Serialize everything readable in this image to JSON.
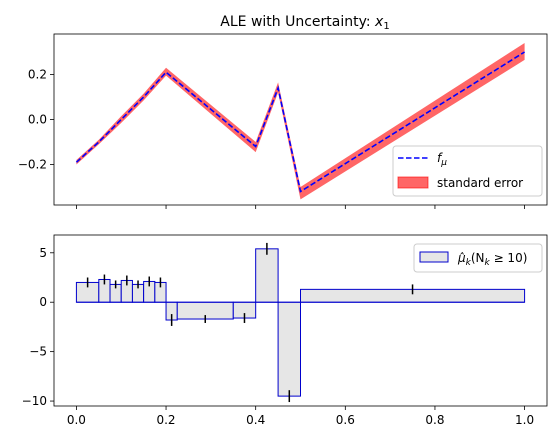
{
  "chart_data": [
    {
      "type": "line",
      "title_prefix": "ALE with Uncertainty: ",
      "title_var": "x",
      "title_sub": "1",
      "xlim": [
        -0.05,
        1.05
      ],
      "ylim": [
        -0.38,
        0.38
      ],
      "x_ticks": [
        0.0,
        0.2,
        0.4,
        0.6,
        0.8,
        1.0
      ],
      "y_ticks": [
        0.2,
        0.0,
        -0.2
      ],
      "y_tick_labels": [
        "0.2",
        "0.0",
        "−0.2"
      ],
      "series": [
        {
          "name": "fμ",
          "legend_main": "f",
          "legend_sub": "μ",
          "color": "#0000ff",
          "style": "dashed",
          "x": [
            0.0,
            0.05,
            0.1,
            0.15,
            0.2,
            0.4,
            0.45,
            0.5,
            1.0
          ],
          "y": [
            -0.19,
            -0.1,
            0.0,
            0.1,
            0.21,
            -0.12,
            0.14,
            -0.32,
            0.3
          ]
        },
        {
          "name": "standard error",
          "color": "#ff0000",
          "x": [
            0.0,
            0.05,
            0.1,
            0.15,
            0.2,
            0.4,
            0.45,
            0.5,
            1.0
          ],
          "lower": [
            -0.2,
            -0.11,
            -0.015,
            0.085,
            0.195,
            -0.145,
            0.12,
            -0.355,
            0.265
          ],
          "upper": [
            -0.18,
            -0.09,
            0.015,
            0.115,
            0.23,
            -0.1,
            0.165,
            -0.3,
            0.34
          ]
        }
      ],
      "legend": {
        "position": "bottom-right",
        "entries": [
          "fμ",
          "standard error"
        ]
      }
    },
    {
      "type": "bar",
      "xlim": [
        -0.05,
        1.05
      ],
      "ylim": [
        -10.5,
        6.8
      ],
      "x_ticks": [
        0.0,
        0.2,
        0.4,
        0.6,
        0.8,
        1.0
      ],
      "x_tick_labels": [
        "0.0",
        "0.2",
        "0.4",
        "0.6",
        "0.8",
        "1.0"
      ],
      "y_ticks": [
        5,
        0,
        -5,
        -10
      ],
      "y_tick_labels": [
        "5",
        "0",
        "−5",
        "−10"
      ],
      "bar_fill": "#e6e6e6",
      "bar_edge": "#0000cd",
      "bins": [
        {
          "x0": 0.0,
          "x1": 0.05,
          "value": 2.0
        },
        {
          "x0": 0.05,
          "x1": 0.075,
          "value": 2.3
        },
        {
          "x0": 0.075,
          "x1": 0.1,
          "value": 1.8
        },
        {
          "x0": 0.1,
          "x1": 0.125,
          "value": 2.2
        },
        {
          "x0": 0.125,
          "x1": 0.15,
          "value": 1.8
        },
        {
          "x0": 0.15,
          "x1": 0.175,
          "value": 2.1
        },
        {
          "x0": 0.175,
          "x1": 0.2,
          "value": 2.0
        },
        {
          "x0": 0.2,
          "x1": 0.225,
          "value": -1.8
        },
        {
          "x0": 0.225,
          "x1": 0.35,
          "value": -1.7
        },
        {
          "x0": 0.35,
          "x1": 0.4,
          "value": -1.6
        },
        {
          "x0": 0.4,
          "x1": 0.45,
          "value": 5.4
        },
        {
          "x0": 0.45,
          "x1": 0.5,
          "value": -9.5
        },
        {
          "x0": 0.5,
          "x1": 1.0,
          "value": 1.3
        }
      ],
      "error_bars": [
        {
          "x": 0.025,
          "y": 2.0,
          "err": 0.5
        },
        {
          "x": 0.0625,
          "y": 2.3,
          "err": 0.5
        },
        {
          "x": 0.0875,
          "y": 1.8,
          "err": 0.4
        },
        {
          "x": 0.1125,
          "y": 2.2,
          "err": 0.5
        },
        {
          "x": 0.1375,
          "y": 1.8,
          "err": 0.4
        },
        {
          "x": 0.1625,
          "y": 2.1,
          "err": 0.5
        },
        {
          "x": 0.1875,
          "y": 2.0,
          "err": 0.5
        },
        {
          "x": 0.2125,
          "y": -1.8,
          "err": 0.6
        },
        {
          "x": 0.2875,
          "y": -1.7,
          "err": 0.4
        },
        {
          "x": 0.375,
          "y": -1.6,
          "err": 0.5
        },
        {
          "x": 0.425,
          "y": 5.4,
          "err": 0.6
        },
        {
          "x": 0.475,
          "y": -9.5,
          "err": 0.6
        },
        {
          "x": 0.75,
          "y": 1.3,
          "err": 0.5
        }
      ],
      "legend": {
        "position": "top-right",
        "label_mu": "μ̂",
        "label_sub": "k",
        "label_rest": "(N",
        "label_rest_sub": "k",
        "label_tail": " ≥ 10)"
      }
    }
  ]
}
